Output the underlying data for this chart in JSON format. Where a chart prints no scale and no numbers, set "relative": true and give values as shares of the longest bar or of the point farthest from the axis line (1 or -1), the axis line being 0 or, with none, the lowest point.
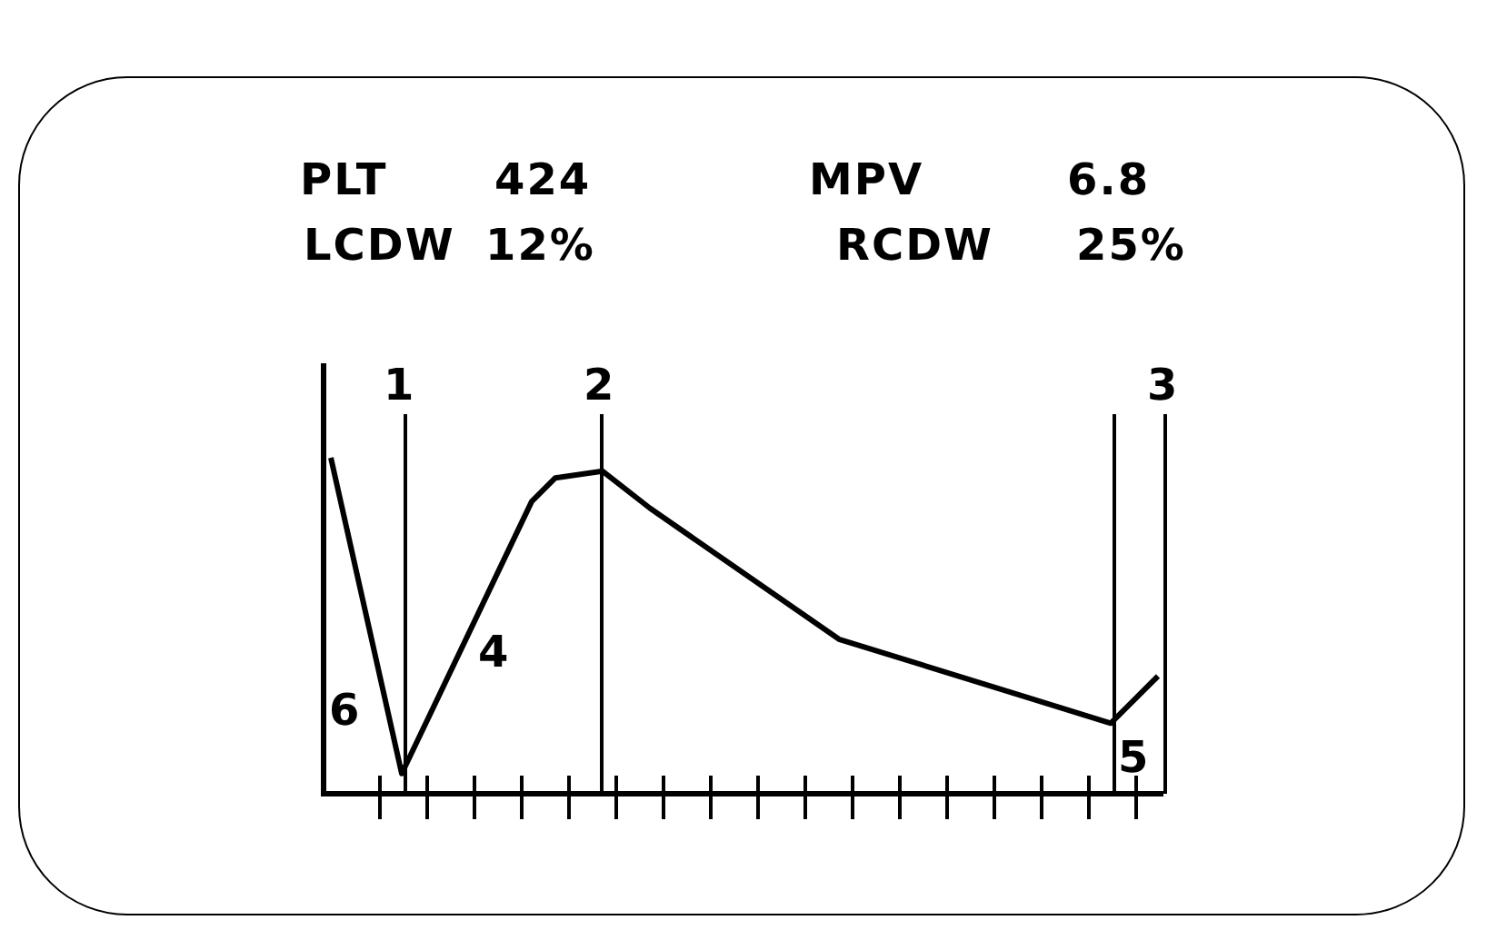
{
  "chart_data": {
    "type": "line",
    "relative": true,
    "legend": false,
    "marker": "none",
    "annotations": [
      "PLT",
      "424",
      "MPV",
      "6.8",
      "LCDW",
      "12%",
      "RCDW",
      "25%",
      "4",
      "6",
      "5",
      "1",
      "2",
      "3"
    ],
    "categories": [
      null,
      null,
      null,
      null,
      null,
      null,
      null,
      null,
      null,
      null,
      null,
      null,
      null,
      null,
      null,
      null,
      null,
      null,
      null,
      null,
      null,
      null,
      null,
      null,
      null,
      null,
      null,
      null,
      null,
      null,
      null,
      null,
      null,
      null,
      null,
      null,
      null,
      null,
      null,
      null,
      null,
      null,
      null,
      null,
      null,
      null,
      null,
      null,
      null,
      null,
      null,
      null,
      null,
      null,
      null,
      null,
      null,
      null,
      null,
      null,
      null,
      null,
      null,
      null,
      null,
      null,
      null,
      null,
      null,
      null,
      null
    ],
    "series": [
      {
        "color": "#000000",
        "values": [
          1,
          null,
          null,
          null,
          null,
          null,
          0.06,
          null,
          null,
          null,
          null,
          null,
          null,
          null,
          null,
          null,
          null,
          0.87,
          null,
          0.94,
          null,
          null,
          null,
          0.96,
          null,
          null,
          null,
          0.85,
          null,
          null,
          null,
          null,
          null,
          null,
          null,
          null,
          null,
          null,
          null,
          null,
          null,
          null,
          null,
          0.46,
          null,
          null,
          null,
          null,
          null,
          null,
          null,
          null,
          null,
          null,
          null,
          null,
          null,
          null,
          null,
          null,
          null,
          null,
          null,
          null,
          null,
          null,
          0.21,
          null,
          null,
          null,
          0.35
        ]
      }
    ]
  }
}
